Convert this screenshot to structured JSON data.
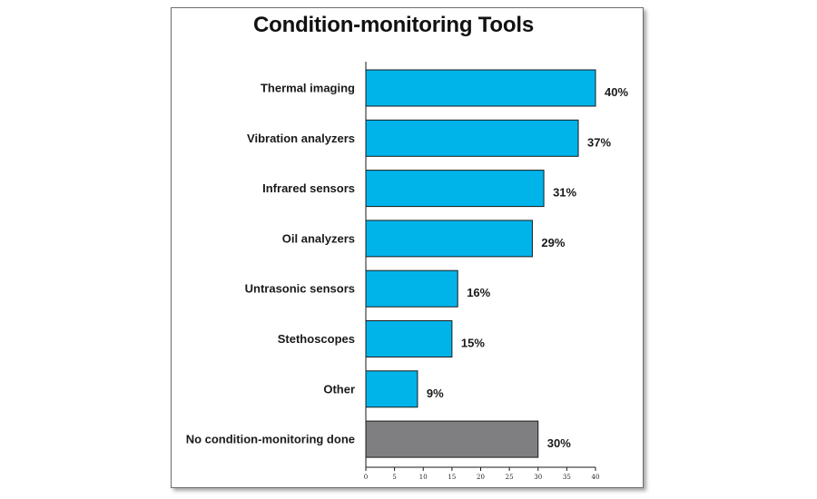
{
  "chart_data": {
    "type": "bar",
    "orientation": "horizontal",
    "title": "Condition-monitoring Tools",
    "categories": [
      "Thermal imaging",
      "Vibration analyzers",
      "Infrared sensors",
      "Oil analyzers",
      "Untrasonic sensors",
      "Stethoscopes",
      "Other",
      "No condition-monitoring done"
    ],
    "values": [
      40,
      37,
      31,
      29,
      16,
      15,
      9,
      30
    ],
    "value_labels": [
      "40%",
      "37%",
      "31%",
      "29%",
      "16%",
      "15%",
      "9%",
      "30%"
    ],
    "bar_colors": [
      "#00b4ea",
      "#00b4ea",
      "#00b4ea",
      "#00b4ea",
      "#00b4ea",
      "#00b4ea",
      "#00b4ea",
      "#7f7f81"
    ],
    "xlim": [
      0,
      40
    ],
    "x_ticks": [
      0,
      5,
      10,
      15,
      20,
      25,
      30,
      35,
      40
    ],
    "xlabel": "",
    "ylabel": "",
    "grid": false,
    "legend": "none"
  }
}
